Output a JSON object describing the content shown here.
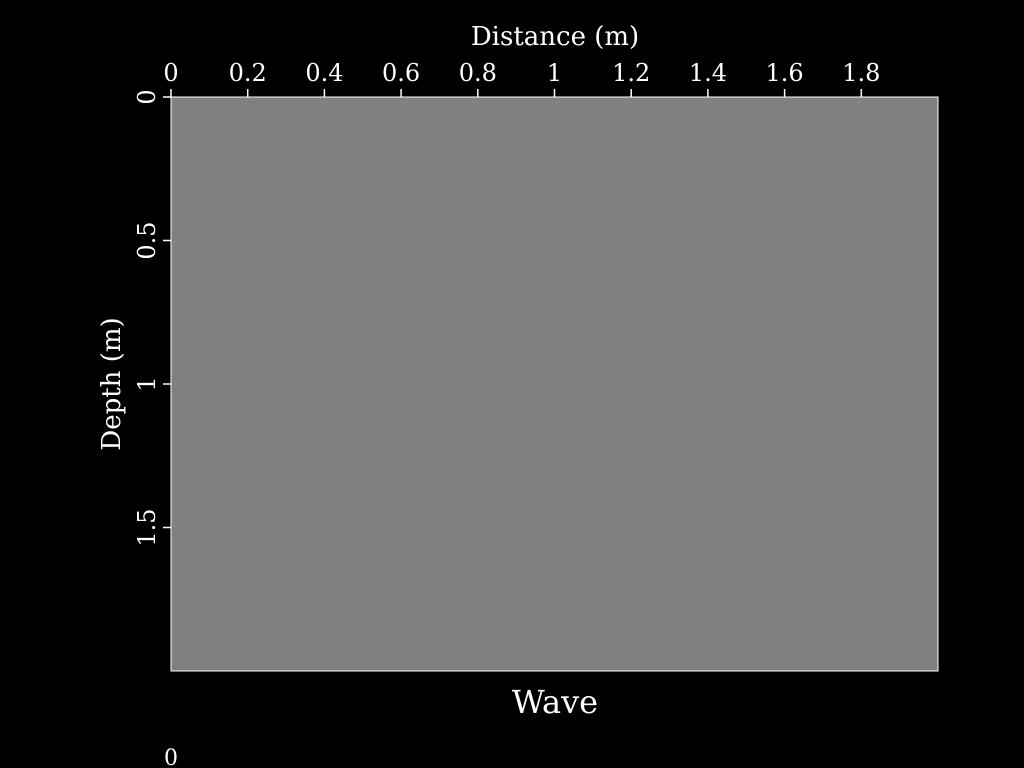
{
  "chart_data": {
    "type": "heatmap",
    "title": "Wave",
    "xlabel": "Distance (m)",
    "ylabel": "Depth (m)",
    "xlim": [
      0,
      2
    ],
    "ylim": [
      0,
      2
    ],
    "y_inverted": true,
    "x_ticks": [
      0,
      0.2,
      0.4,
      0.6,
      0.8,
      1,
      1.2,
      1.4,
      1.6,
      1.8
    ],
    "x_tick_labels": [
      "0",
      "0.2",
      "0.4",
      "0.6",
      "0.8",
      "1",
      "1.2",
      "1.4",
      "1.6",
      "1.8"
    ],
    "y_ticks": [
      0,
      0.5,
      1,
      1.5
    ],
    "y_tick_labels": [
      "0",
      "0.5",
      "1",
      "1.5"
    ],
    "x_axis_position": "top",
    "field_color": "#808080",
    "field_value": 0,
    "frame_label": "0",
    "grid": false,
    "legend": "none"
  },
  "colors": {
    "background": "#000000",
    "foreground": "#ffffff",
    "field": "#808080"
  }
}
